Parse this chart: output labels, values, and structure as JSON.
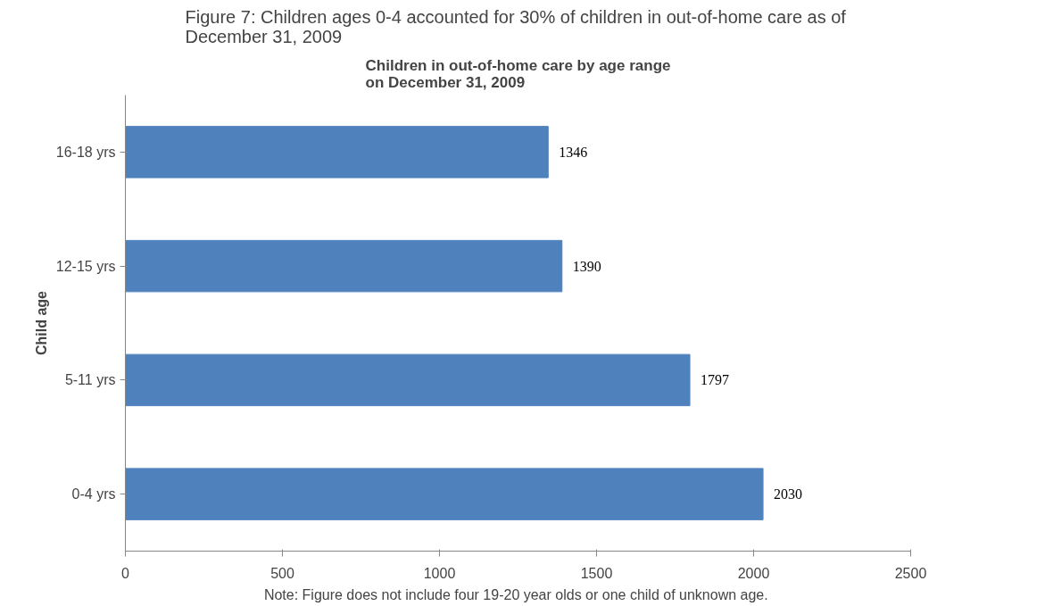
{
  "chart_data": {
    "type": "bar",
    "orientation": "horizontal",
    "title": "Figure 7:  Children ages 0-4 accounted for 30% of children in out-of-home care as of\nDecember 31, 2009",
    "subtitle": "Children in out-of-home care by age range\non December 31, 2009",
    "ylabel": "Child age",
    "categories": [
      "16-18 yrs",
      "12-15 yrs",
      "5-11 yrs",
      "0-4 yrs"
    ],
    "values": [
      1346,
      1390,
      1797,
      2030
    ],
    "color": "#4f81bd",
    "xlim": [
      0,
      2500
    ],
    "xticks": [
      0,
      500,
      1000,
      1500,
      2000,
      2500
    ],
    "grid": false,
    "data_labels": true,
    "annotations": [
      "Note:  Figure does not include four 19-20 year olds or one child of unknown age."
    ]
  }
}
